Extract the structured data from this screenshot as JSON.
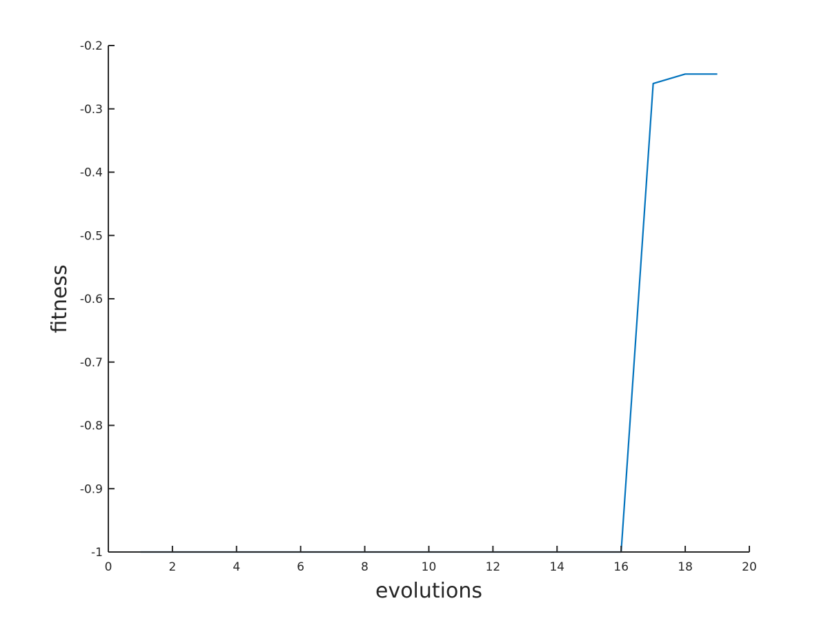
{
  "chart_data": {
    "type": "line",
    "title": "",
    "xlabel": "evolutions",
    "ylabel": "fitness",
    "xlim": [
      0,
      20
    ],
    "ylim": [
      -1,
      -0.2
    ],
    "xticks": [
      0,
      2,
      4,
      6,
      8,
      10,
      12,
      14,
      16,
      18,
      20
    ],
    "yticks": [
      -1,
      -0.9,
      -0.8,
      -0.7,
      -0.6,
      -0.5,
      -0.4,
      -0.3,
      -0.2
    ],
    "xtick_labels": [
      "0",
      "2",
      "4",
      "6",
      "8",
      "10",
      "12",
      "14",
      "16",
      "18",
      "20"
    ],
    "ytick_labels": [
      "-1",
      "-0.9",
      "-0.8",
      "-0.7",
      "-0.6",
      "-0.5",
      "-0.4",
      "-0.3",
      "-0.2"
    ],
    "grid": false,
    "series": [
      {
        "color": "#0072BD",
        "x": [
          1,
          2,
          3,
          4,
          5,
          6,
          7,
          8,
          9,
          10,
          11,
          12,
          13,
          14,
          15,
          16,
          17,
          18,
          19
        ],
        "y": [
          -1,
          -1,
          -1,
          -1,
          -1,
          -1,
          -1,
          -1,
          -1,
          -1,
          -1,
          -1,
          -1,
          -1,
          -1,
          -1,
          -0.26,
          -0.245,
          -0.245
        ]
      }
    ]
  }
}
